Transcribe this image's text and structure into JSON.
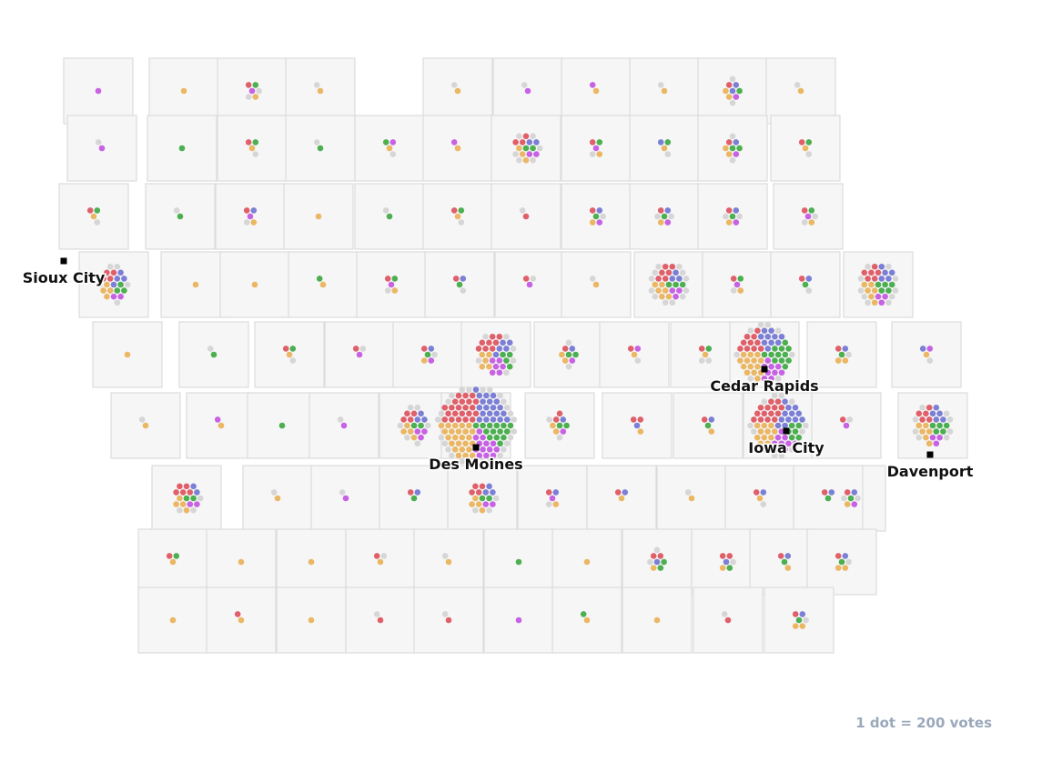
{
  "map": {
    "legend": "1 dot = 200 votes",
    "colors": [
      "#e0606a",
      "#7b80d6",
      "#4caf50",
      "#c862e4",
      "#ebb764",
      "#d6d6d6"
    ],
    "cities": [
      {
        "label": "Sioux City"
      },
      {
        "label": "Des Moines"
      },
      {
        "label": "Cedar Rapids"
      },
      {
        "label": "Iowa City"
      },
      {
        "label": "Davenport"
      }
    ],
    "counties": [
      [
        0,
        0,
        0,
        1,
        0,
        0
      ],
      [
        0,
        0,
        0,
        0,
        1,
        0
      ],
      [
        1,
        0,
        1,
        1,
        1,
        2
      ],
      [
        0,
        0,
        0,
        0,
        1,
        1
      ],
      [
        0,
        0,
        0,
        0,
        1,
        1
      ],
      [
        0,
        0,
        0,
        1,
        0,
        1
      ],
      [
        0,
        0,
        0,
        1,
        1,
        0
      ],
      [
        0,
        0,
        0,
        0,
        1,
        1
      ],
      [
        1,
        2,
        1,
        1,
        2,
        2
      ],
      [
        0,
        0,
        0,
        0,
        1,
        1
      ],
      [
        0,
        0,
        0,
        1,
        0,
        1
      ],
      [
        0,
        0,
        1,
        0,
        0,
        0
      ],
      [
        1,
        0,
        1,
        0,
        1,
        1
      ],
      [
        0,
        0,
        1,
        0,
        0,
        1
      ],
      [
        0,
        0,
        1,
        1,
        1,
        1
      ],
      [
        0,
        0,
        0,
        1,
        1,
        0
      ],
      [
        3,
        2,
        2,
        2,
        3,
        6
      ],
      [
        1,
        0,
        1,
        1,
        1,
        1
      ],
      [
        0,
        1,
        1,
        0,
        1,
        1
      ],
      [
        1,
        1,
        2,
        1,
        2,
        2
      ],
      [
        1,
        0,
        1,
        0,
        1,
        1
      ],
      [
        1,
        0,
        1,
        0,
        1,
        1
      ],
      [
        0,
        0,
        1,
        0,
        0,
        1
      ],
      [
        1,
        1,
        0,
        1,
        1,
        1
      ],
      [
        0,
        0,
        0,
        0,
        1,
        0
      ],
      [
        0,
        0,
        1,
        0,
        0,
        1
      ],
      [
        1,
        0,
        1,
        0,
        1,
        1
      ],
      [
        1,
        0,
        0,
        0,
        0,
        1
      ],
      [
        1,
        1,
        1,
        1,
        1,
        1
      ],
      [
        1,
        1,
        1,
        1,
        1,
        2
      ],
      [
        1,
        1,
        1,
        1,
        1,
        2
      ],
      [
        1,
        0,
        1,
        1,
        1,
        2
      ],
      [
        4,
        4,
        3,
        2,
        4,
        5
      ],
      [
        0,
        0,
        0,
        0,
        1,
        0
      ],
      [
        0,
        0,
        0,
        0,
        1,
        0
      ],
      [
        0,
        0,
        1,
        0,
        1,
        0
      ],
      [
        1,
        0,
        1,
        1,
        1,
        1
      ],
      [
        1,
        1,
        1,
        0,
        0,
        1
      ],
      [
        1,
        0,
        0,
        1,
        0,
        1
      ],
      [
        0,
        0,
        0,
        0,
        1,
        1
      ],
      [
        6,
        3,
        3,
        3,
        6,
        12
      ],
      [
        1,
        0,
        1,
        1,
        1,
        1
      ],
      [
        1,
        1,
        1,
        0,
        0,
        1
      ],
      [
        6,
        5,
        5,
        3,
        6,
        10
      ],
      [
        0,
        0,
        0,
        0,
        1,
        0
      ],
      [
        0,
        0,
        1,
        0,
        0,
        1
      ],
      [
        1,
        0,
        1,
        0,
        1,
        1
      ],
      [
        1,
        0,
        0,
        1,
        0,
        1
      ],
      [
        1,
        1,
        1,
        1,
        1,
        1
      ],
      [
        8,
        5,
        4,
        6,
        5,
        6
      ],
      [
        1,
        1,
        2,
        1,
        2,
        2
      ],
      [
        1,
        0,
        0,
        1,
        1,
        1
      ],
      [
        1,
        0,
        1,
        0,
        1,
        2
      ],
      [
        10,
        10,
        12,
        9,
        14,
        8
      ],
      [
        1,
        1,
        1,
        0,
        2,
        1
      ],
      [
        0,
        1,
        0,
        1,
        1,
        1
      ],
      [
        0,
        0,
        0,
        0,
        1,
        1
      ],
      [
        0,
        0,
        0,
        1,
        1,
        0
      ],
      [
        0,
        0,
        1,
        0,
        0,
        0
      ],
      [
        0,
        0,
        0,
        1,
        0,
        1
      ],
      [
        4,
        3,
        2,
        3,
        4,
        6
      ],
      [
        22,
        20,
        14,
        14,
        24,
        26
      ],
      [
        2,
        1,
        2,
        1,
        2,
        2
      ],
      [
        2,
        1,
        0,
        0,
        1,
        0
      ],
      [
        1,
        1,
        1,
        0,
        1,
        0
      ],
      [
        14,
        12,
        6,
        9,
        12,
        12
      ],
      [
        1,
        0,
        0,
        1,
        0,
        1
      ],
      [
        5,
        5,
        5,
        3,
        6,
        8
      ],
      [
        5,
        2,
        2,
        2,
        4,
        3
      ],
      [
        0,
        0,
        0,
        0,
        1,
        1
      ],
      [
        0,
        0,
        0,
        1,
        0,
        1
      ],
      [
        1,
        1,
        1,
        0,
        0,
        0
      ],
      [
        4,
        3,
        2,
        2,
        4,
        3
      ],
      [
        1,
        1,
        0,
        1,
        1,
        1
      ],
      [
        1,
        1,
        0,
        0,
        1,
        0
      ],
      [
        0,
        0,
        0,
        0,
        1,
        1
      ],
      [
        1,
        1,
        0,
        0,
        1,
        1
      ],
      [
        1,
        1,
        1,
        1,
        1,
        2
      ],
      [
        1,
        1,
        1,
        0,
        0,
        0
      ],
      [
        1,
        0,
        1,
        0,
        1,
        0
      ],
      [
        0,
        0,
        0,
        0,
        1,
        0
      ],
      [
        0,
        0,
        0,
        0,
        1,
        0
      ],
      [
        1,
        0,
        0,
        0,
        1,
        1
      ],
      [
        0,
        0,
        0,
        0,
        1,
        1
      ],
      [
        0,
        0,
        1,
        0,
        0,
        0
      ],
      [
        0,
        0,
        0,
        0,
        1,
        0
      ],
      [
        2,
        1,
        2,
        0,
        1,
        2
      ],
      [
        2,
        1,
        1,
        0,
        1,
        1
      ],
      [
        1,
        1,
        1,
        0,
        1,
        0
      ],
      [
        1,
        1,
        1,
        0,
        2,
        1
      ],
      [
        0,
        0,
        0,
        0,
        1,
        0
      ],
      [
        1,
        0,
        0,
        0,
        1,
        0
      ],
      [
        0,
        0,
        0,
        0,
        1,
        0
      ],
      [
        1,
        0,
        0,
        0,
        0,
        1
      ],
      [
        1,
        0,
        0,
        0,
        0,
        1
      ],
      [
        0,
        0,
        0,
        1,
        0,
        0
      ],
      [
        0,
        0,
        1,
        0,
        1,
        0
      ],
      [
        0,
        0,
        0,
        0,
        1,
        0
      ],
      [
        1,
        0,
        0,
        0,
        0,
        1
      ],
      [
        1,
        1,
        1,
        0,
        2,
        1
      ]
    ]
  }
}
